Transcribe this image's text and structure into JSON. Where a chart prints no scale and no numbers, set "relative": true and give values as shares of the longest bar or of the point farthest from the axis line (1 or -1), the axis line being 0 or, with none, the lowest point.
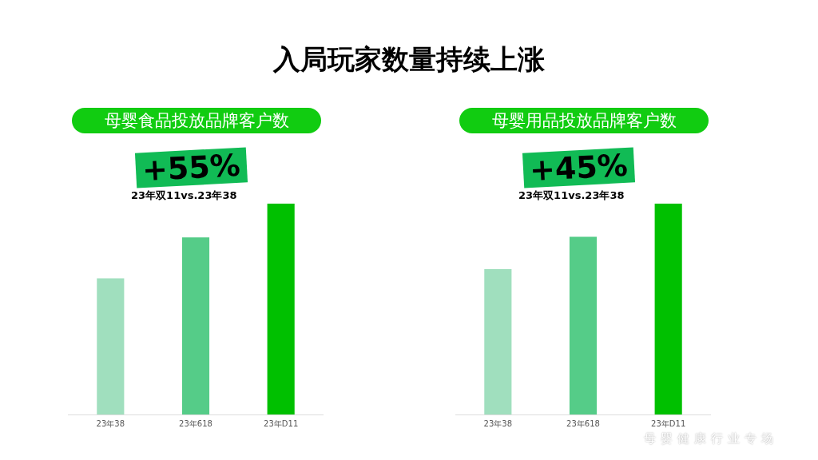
{
  "chart_data": [
    {
      "type": "bar",
      "title": "入局玩家数量持续上涨",
      "subtitle": "母婴食品投放品牌客户数",
      "categories": [
        "23年38",
        "23年618",
        "23年D11"
      ],
      "values": [
        0.646,
        0.84,
        1
      ],
      "colors": [
        "#a0dfbe",
        "#55cc88",
        "#00c000"
      ],
      "relative": true,
      "grid": false,
      "legend": false,
      "annotations": [
        "+55%",
        "23年双11vs.23年38"
      ]
    },
    {
      "type": "bar",
      "subtitle": "母婴用品投放品牌客户数",
      "categories": [
        "23年38",
        "23年618",
        "23年D11"
      ],
      "values": [
        0.689,
        0.843,
        1
      ],
      "colors": [
        "#a0dfbe",
        "#55cc88",
        "#00c000"
      ],
      "relative": true,
      "grid": false,
      "legend": false,
      "annotations": [
        "+45%",
        "23年双11vs.23年38",
        "母婴健康行业专场"
      ]
    }
  ]
}
